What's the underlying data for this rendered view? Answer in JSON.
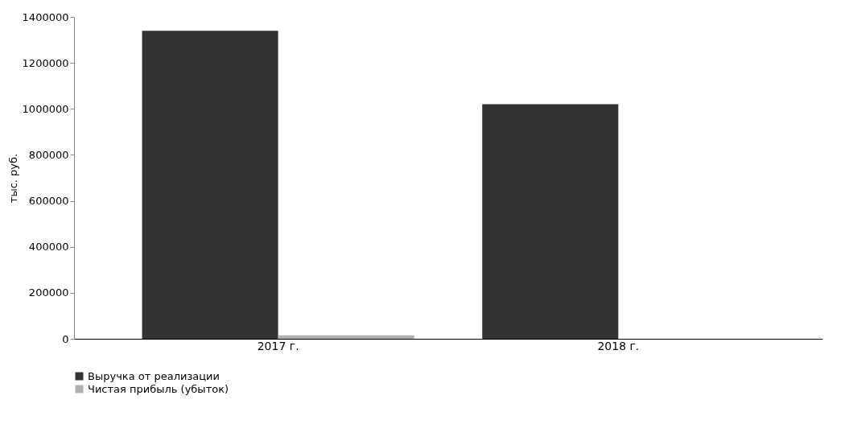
{
  "chart_data": {
    "type": "bar",
    "ylabel": "тыс. руб.",
    "categories": [
      "2017 г.",
      "2018 г."
    ],
    "series": [
      {
        "name": "Выручка от реализации",
        "color": "#333333",
        "values": [
          1340000,
          1020000
        ]
      },
      {
        "name": "Чистая прибыль (убыток)",
        "color": "#b0b0b0",
        "values": [
          15000,
          null
        ]
      }
    ],
    "ylim": [
      0,
      1400000
    ],
    "yticks": [
      0,
      200000,
      400000,
      600000,
      800000,
      1000000,
      1200000,
      1400000
    ],
    "grid": false,
    "legend": "bottom left"
  }
}
